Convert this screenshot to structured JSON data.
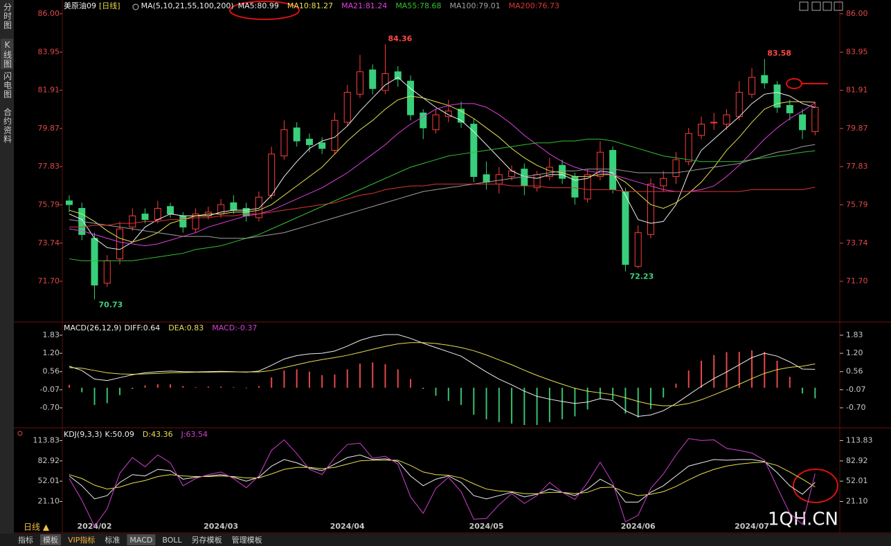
{
  "sidebar": [
    "分时图",
    "K线图",
    "闪电图",
    "合约资料"
  ],
  "tabs": [
    "指标",
    "模板",
    "VIP指标",
    "标准",
    "MACD",
    "BOLL",
    "另存模板",
    "管理模板"
  ],
  "period_button": "日线 ▲",
  "watermark": "1QH.CN",
  "chart_data": [
    {
      "type": "candlestick",
      "title": "美原油09",
      "period": "[日线]",
      "ma_title": "MA(5,10,21,55,100,200)",
      "up_color": "#ff3c3c",
      "down_color": "#38d07a",
      "tick_color": "#e04848",
      "grid": false,
      "x": [
        null,
        null,
        "2024/02",
        null,
        null,
        null,
        null,
        null,
        null,
        null,
        null,
        null,
        "2024/03",
        null,
        null,
        null,
        null,
        null,
        null,
        null,
        null,
        null,
        "2024/04",
        null,
        null,
        null,
        null,
        null,
        null,
        null,
        null,
        null,
        null,
        "2024/05",
        null,
        null,
        null,
        null,
        null,
        null,
        null,
        null,
        null,
        null,
        null,
        "2024/06",
        null,
        null,
        null,
        null,
        null,
        null,
        null,
        null,
        "2024/07",
        null,
        null,
        null,
        null,
        null
      ],
      "open": [
        76.0,
        75.6,
        74.0,
        71.6,
        72.9,
        74.6,
        75.3,
        75.0,
        75.7,
        75.2,
        74.5,
        75.2,
        75.3,
        75.9,
        75.6,
        75.1,
        76.3,
        78.4,
        79.9,
        79.3,
        79.1,
        78.7,
        80.2,
        81.7,
        83.0,
        81.9,
        82.9,
        82.4,
        80.7,
        79.8,
        80.5,
        80.9,
        80.1,
        77.4,
        76.9,
        77.3,
        77.7,
        76.7,
        77.3,
        77.9,
        77.3,
        76.1,
        77.3,
        78.7,
        76.5,
        72.5,
        74.2,
        76.8,
        77.3,
        78.1,
        79.5,
        80.2,
        80.1,
        80.5,
        81.7,
        82.7,
        82.2,
        81.1,
        80.6,
        79.7
      ],
      "high": [
        76.3,
        75.9,
        74.3,
        73.1,
        74.9,
        75.6,
        75.6,
        76.0,
        75.9,
        75.4,
        75.6,
        75.7,
        76.1,
        76.3,
        75.9,
        76.5,
        78.9,
        80.3,
        80.2,
        79.6,
        79.4,
        80.7,
        82.2,
        83.8,
        83.3,
        84.36,
        83.2,
        82.7,
        80.9,
        80.9,
        81.4,
        81.3,
        80.4,
        78.1,
        77.8,
        77.9,
        78.0,
        77.6,
        78.3,
        78.2,
        77.5,
        77.7,
        79.2,
        78.9,
        76.7,
        74.7,
        77.2,
        77.6,
        78.6,
        79.9,
        80.5,
        80.7,
        80.9,
        82.4,
        83.1,
        83.58,
        82.4,
        81.4,
        80.9,
        81.3
      ],
      "low": [
        75.4,
        73.9,
        70.73,
        71.4,
        72.6,
        74.4,
        74.8,
        74.8,
        75.1,
        74.3,
        74.3,
        75.0,
        75.1,
        75.3,
        74.9,
        74.9,
        76.1,
        78.2,
        78.9,
        78.6,
        78.5,
        78.5,
        80.0,
        81.5,
        81.7,
        81.7,
        82.1,
        80.3,
        79.3,
        79.6,
        80.2,
        79.9,
        77.0,
        76.6,
        76.4,
        77.1,
        76.3,
        76.5,
        77.1,
        76.9,
        75.8,
        75.9,
        77.1,
        76.4,
        72.23,
        72.4,
        74.0,
        76.5,
        76.9,
        77.9,
        79.3,
        79.8,
        79.8,
        80.3,
        81.5,
        82.0,
        80.7,
        80.3,
        79.3,
        79.5
      ],
      "close": [
        75.8,
        74.2,
        71.5,
        72.8,
        74.5,
        75.2,
        75.0,
        75.6,
        75.3,
        74.6,
        75.3,
        75.4,
        75.8,
        75.5,
        75.2,
        76.2,
        78.5,
        79.8,
        79.2,
        79.0,
        78.8,
        80.3,
        81.8,
        82.9,
        82.0,
        82.8,
        82.5,
        80.6,
        79.9,
        80.6,
        80.8,
        80.2,
        77.3,
        77.0,
        77.4,
        77.6,
        76.8,
        77.4,
        77.8,
        77.2,
        76.2,
        77.4,
        78.6,
        76.6,
        72.6,
        74.3,
        76.9,
        77.2,
        78.2,
        79.6,
        80.1,
        80.2,
        80.6,
        81.8,
        82.6,
        82.3,
        81.0,
        80.7,
        79.8,
        81.0
      ],
      "series": [
        {
          "name": "MA5:80.99",
          "color": "#f0f0f0",
          "values": [
            75.3,
            75.0,
            74.0,
            73.5,
            73.4,
            73.8,
            74.6,
            75.0,
            75.3,
            75.2,
            75.2,
            75.2,
            75.4,
            75.5,
            75.5,
            75.6,
            76.3,
            77.3,
            78.1,
            78.8,
            79.2,
            79.4,
            80.0,
            80.8,
            81.5,
            82.2,
            82.6,
            82.0,
            81.5,
            81.0,
            80.6,
            80.3,
            79.7,
            79.0,
            78.3,
            77.6,
            77.3,
            77.2,
            77.4,
            77.4,
            77.1,
            77.2,
            77.6,
            77.5,
            76.3,
            75.0,
            74.8,
            74.9,
            75.8,
            77.5,
            78.7,
            79.3,
            79.9,
            80.5,
            81.2,
            81.7,
            81.8,
            81.6,
            81.2,
            80.99
          ]
        },
        {
          "name": "MA10:81.27",
          "color": "#e8e050",
          "values": [
            75.5,
            75.3,
            74.9,
            74.4,
            74.0,
            73.8,
            74.0,
            74.3,
            74.8,
            75.0,
            75.2,
            75.3,
            75.3,
            75.4,
            75.4,
            75.5,
            75.8,
            76.3,
            76.8,
            77.3,
            77.8,
            78.5,
            79.2,
            79.8,
            80.3,
            80.9,
            81.4,
            81.6,
            81.5,
            81.3,
            81.1,
            80.8,
            80.4,
            79.9,
            79.4,
            78.8,
            78.3,
            77.9,
            77.6,
            77.5,
            77.3,
            77.3,
            77.4,
            77.4,
            77.0,
            76.4,
            75.8,
            75.6,
            75.9,
            76.4,
            77.0,
            77.8,
            78.7,
            79.4,
            80.2,
            80.9,
            81.2,
            81.3,
            81.3,
            81.27
          ]
        },
        {
          "name": "MA21:81.24",
          "color": "#e040e0",
          "values": [
            74.5,
            74.4,
            74.2,
            74.0,
            73.8,
            73.7,
            73.6,
            73.7,
            73.9,
            74.1,
            74.3,
            74.6,
            74.8,
            75.0,
            75.2,
            75.3,
            75.5,
            75.8,
            76.1,
            76.4,
            76.7,
            77.1,
            77.5,
            78.0,
            78.5,
            79.0,
            79.6,
            80.1,
            80.5,
            80.9,
            81.1,
            81.2,
            81.2,
            81.0,
            80.6,
            80.1,
            79.5,
            79.0,
            78.5,
            78.1,
            77.8,
            77.6,
            77.5,
            77.4,
            77.2,
            77.0,
            76.8,
            76.6,
            76.5,
            76.5,
            76.6,
            76.8,
            77.3,
            77.9,
            78.6,
            79.3,
            79.9,
            80.4,
            80.8,
            81.24
          ]
        },
        {
          "name": "MA55:78.68",
          "color": "#34c034",
          "values": [
            72.9,
            72.8,
            72.8,
            72.8,
            72.8,
            72.8,
            72.9,
            73.0,
            73.1,
            73.2,
            73.4,
            73.5,
            73.6,
            73.8,
            74.0,
            74.2,
            74.5,
            74.8,
            75.1,
            75.4,
            75.7,
            76.0,
            76.3,
            76.6,
            76.9,
            77.2,
            77.5,
            77.8,
            78.0,
            78.2,
            78.4,
            78.5,
            78.6,
            78.7,
            78.8,
            78.9,
            79.0,
            79.1,
            79.1,
            79.2,
            79.2,
            79.3,
            79.3,
            79.2,
            79.0,
            78.8,
            78.6,
            78.4,
            78.3,
            78.2,
            78.1,
            78.1,
            78.1,
            78.1,
            78.2,
            78.3,
            78.4,
            78.5,
            78.6,
            78.68
          ]
        },
        {
          "name": "MA100:79.01",
          "color": "#a0a0a0",
          "values": [
            75.0,
            74.9,
            74.8,
            74.7,
            74.6,
            74.5,
            74.4,
            74.3,
            74.2,
            74.1,
            74.1,
            74.1,
            74.0,
            74.0,
            74.0,
            74.1,
            74.2,
            74.3,
            74.5,
            74.7,
            74.9,
            75.1,
            75.3,
            75.5,
            75.7,
            75.9,
            76.1,
            76.3,
            76.5,
            76.6,
            76.7,
            76.8,
            76.9,
            77.0,
            77.1,
            77.2,
            77.3,
            77.4,
            77.5,
            77.6,
            77.6,
            77.7,
            77.7,
            77.7,
            77.6,
            77.5,
            77.5,
            77.5,
            77.5,
            77.6,
            77.7,
            77.8,
            77.9,
            78.0,
            78.2,
            78.4,
            78.6,
            78.7,
            78.9,
            79.01
          ]
        },
        {
          "name": "MA200:76.73",
          "color": "#e03434",
          "values": [
            74.6,
            74.6,
            74.7,
            74.7,
            74.8,
            74.8,
            74.9,
            74.9,
            75.0,
            75.0,
            75.1,
            75.1,
            75.2,
            75.2,
            75.3,
            75.3,
            75.4,
            75.5,
            75.6,
            75.7,
            75.8,
            75.9,
            76.1,
            76.3,
            76.4,
            76.6,
            76.7,
            76.8,
            76.8,
            76.9,
            76.9,
            76.9,
            76.9,
            76.9,
            76.9,
            76.8,
            76.8,
            76.8,
            76.7,
            76.7,
            76.7,
            76.6,
            76.6,
            76.6,
            76.5,
            76.5,
            76.5,
            76.5,
            76.5,
            76.5,
            76.5,
            76.5,
            76.5,
            76.5,
            76.6,
            76.6,
            76.6,
            76.6,
            76.6,
            76.73
          ]
        }
      ],
      "ylim": [
        69.56,
        86.18
      ],
      "yticks": [
        {
          "value": 86,
          "label": "86.00"
        },
        83.95,
        81.91,
        79.87,
        77.83,
        75.79,
        73.74,
        {
          "value": 71.7,
          "label": "71.70"
        }
      ]
    },
    {
      "type": "line",
      "title": "MACD(26,12,9)",
      "tick_color": "#c8c8c8",
      "grid": false,
      "series": [
        {
          "name": "DIFF:0.64",
          "color": "#f0f0f0",
          "values": [
            0.75,
            0.6,
            0.3,
            0.25,
            0.35,
            0.45,
            0.52,
            0.56,
            0.58,
            0.56,
            0.55,
            0.56,
            0.57,
            0.56,
            0.54,
            0.58,
            0.78,
            1.0,
            1.12,
            1.18,
            1.2,
            1.28,
            1.45,
            1.65,
            1.78,
            1.85,
            1.85,
            1.72,
            1.55,
            1.4,
            1.25,
            1.1,
            0.82,
            0.55,
            0.3,
            0.1,
            -0.12,
            -0.3,
            -0.4,
            -0.48,
            -0.55,
            -0.5,
            -0.38,
            -0.45,
            -0.8,
            -1.0,
            -0.95,
            -0.8,
            -0.55,
            -0.25,
            0.05,
            0.32,
            0.55,
            0.8,
            1.05,
            1.2,
            1.1,
            0.9,
            0.65,
            0.64
          ]
        },
        {
          "name": "DEA:0.83",
          "color": "#e8e050",
          "values": [
            0.7,
            0.68,
            0.6,
            0.52,
            0.48,
            0.47,
            0.48,
            0.5,
            0.52,
            0.53,
            0.54,
            0.54,
            0.55,
            0.55,
            0.55,
            0.55,
            0.6,
            0.7,
            0.8,
            0.9,
            0.98,
            1.05,
            1.13,
            1.23,
            1.34,
            1.44,
            1.53,
            1.57,
            1.57,
            1.54,
            1.48,
            1.4,
            1.29,
            1.14,
            0.97,
            0.8,
            0.61,
            0.43,
            0.27,
            0.12,
            -0.02,
            -0.12,
            -0.18,
            -0.24,
            -0.35,
            -0.48,
            -0.58,
            -0.63,
            -0.62,
            -0.55,
            -0.42,
            -0.25,
            -0.07,
            0.12,
            0.32,
            0.5,
            0.63,
            0.71,
            0.75,
            0.83
          ]
        }
      ],
      "histogram": {
        "name": "MACD:-0.37",
        "color": "#d040d0",
        "up_color": "#e84848",
        "down_color": "#38c070",
        "values": [
          0.1,
          -0.16,
          -0.6,
          -0.54,
          -0.26,
          -0.04,
          0.08,
          0.12,
          0.12,
          0.06,
          0.02,
          0.04,
          0.04,
          0.02,
          -0.02,
          0.06,
          0.36,
          0.6,
          0.64,
          0.56,
          0.44,
          0.46,
          0.64,
          0.84,
          0.88,
          0.82,
          0.64,
          0.3,
          -0.04,
          -0.28,
          -0.46,
          -0.6,
          -0.94,
          -1.1,
          -1.2,
          -1.25,
          -1.3,
          -1.3,
          -1.2,
          -1.1,
          -1.0,
          -0.76,
          -0.4,
          -0.42,
          -0.9,
          -1.04,
          -0.74,
          -0.34,
          0.14,
          0.6,
          0.94,
          1.14,
          1.24,
          1.25,
          1.3,
          1.25,
          0.94,
          0.38,
          -0.2,
          -0.37
        ]
      },
      "ylim": [
        -1.35,
        2.24
      ],
      "yticks": [
        1.83,
        {
          "value": 1.2,
          "label": "1.20"
        },
        0.56,
        -0.07,
        {
          "value": -0.7,
          "label": "-0.70"
        }
      ]
    },
    {
      "type": "line",
      "title": "KDJ(9,3,3)",
      "tick_color": "#c8c8c8",
      "grid": false,
      "series": [
        {
          "name": "K:50.09",
          "color": "#f0f0f0",
          "values": [
            60,
            45,
            25,
            30,
            50,
            62,
            60,
            70,
            68,
            55,
            58,
            60,
            62,
            58,
            52,
            58,
            75,
            85,
            80,
            72,
            68,
            78,
            88,
            92,
            85,
            86,
            82,
            60,
            45,
            55,
            60,
            50,
            30,
            25,
            30,
            35,
            28,
            32,
            40,
            35,
            30,
            40,
            55,
            45,
            20,
            20,
            35,
            45,
            60,
            75,
            80,
            85,
            84,
            85,
            85,
            82,
            65,
            45,
            32,
            50.09
          ]
        },
        {
          "name": "D:43.36",
          "color": "#e8e050",
          "values": [
            62,
            56,
            46,
            40,
            43,
            49,
            53,
            59,
            62,
            60,
            59,
            59,
            60,
            59,
            57,
            57,
            63,
            70,
            73,
            73,
            71,
            73,
            78,
            83,
            84,
            84,
            84,
            76,
            66,
            62,
            61,
            57,
            48,
            40,
            37,
            36,
            33,
            33,
            35,
            35,
            33,
            35,
            42,
            43,
            35,
            30,
            32,
            36,
            44,
            54,
            63,
            70,
            75,
            78,
            80,
            81,
            76,
            66,
            55,
            43.36
          ]
        },
        {
          "name": "J:63.54",
          "color": "#d040d0",
          "values": [
            56,
            23,
            -17,
            10,
            64,
            88,
            74,
            92,
            80,
            45,
            56,
            62,
            66,
            56,
            42,
            60,
            99,
            115,
            94,
            70,
            62,
            88,
            108,
            110,
            87,
            90,
            78,
            28,
            3,
            41,
            58,
            36,
            -6,
            -5,
            16,
            33,
            18,
            30,
            50,
            35,
            24,
            50,
            81,
            49,
            -10,
            0,
            41,
            63,
            92,
            117,
            114,
            115,
            102,
            99,
            95,
            84,
            43,
            3,
            -14,
            63.54
          ]
        }
      ],
      "ylim": [
        -25.8,
        130.2
      ],
      "yticks": [
        113.83,
        82.92,
        52.01,
        {
          "value": 21.1,
          "label": "21.10"
        }
      ]
    }
  ]
}
